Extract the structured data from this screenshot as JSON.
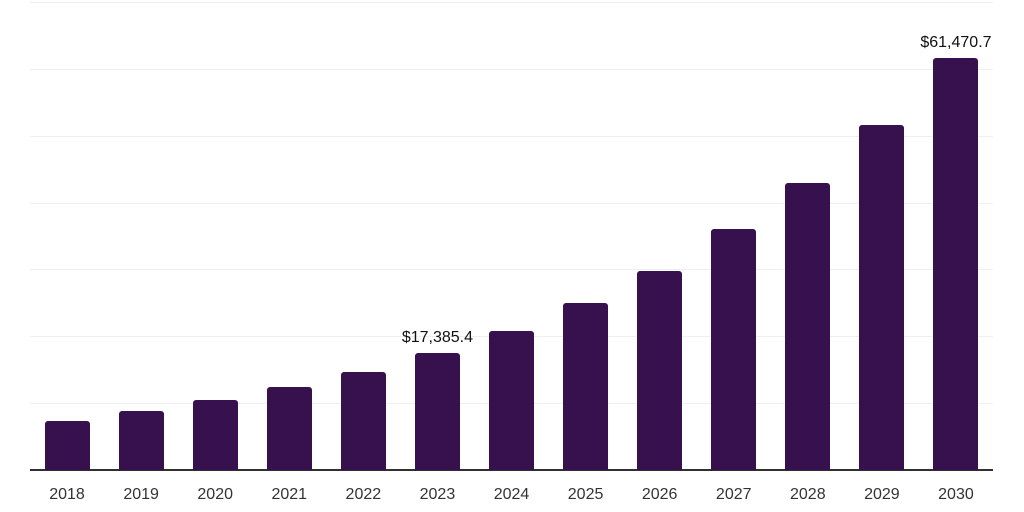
{
  "chart_data": {
    "type": "bar",
    "title": "",
    "xlabel": "",
    "ylabel": "",
    "categories": [
      "2018",
      "2019",
      "2020",
      "2021",
      "2022",
      "2023",
      "2024",
      "2025",
      "2026",
      "2027",
      "2028",
      "2029",
      "2030"
    ],
    "values": [
      7220,
      8630,
      10320,
      12310,
      14460,
      17385.4,
      20640,
      24830,
      29660,
      35900,
      42730,
      51450,
      61470.7
    ],
    "value_labels": {
      "2023": "$17,385.4",
      "2030": "$61,470.7"
    },
    "ylim": [
      0,
      70000
    ],
    "gridline_step": 10000,
    "grid": true,
    "legend_position": "none",
    "y_axis_labels_visible": false,
    "bar_color": "#36114d",
    "gridline_color": "#efefef",
    "axis_line_color": "#303030",
    "tick_label_color": "#333333",
    "value_label_color": "#111111",
    "background_color": "#ffffff"
  }
}
